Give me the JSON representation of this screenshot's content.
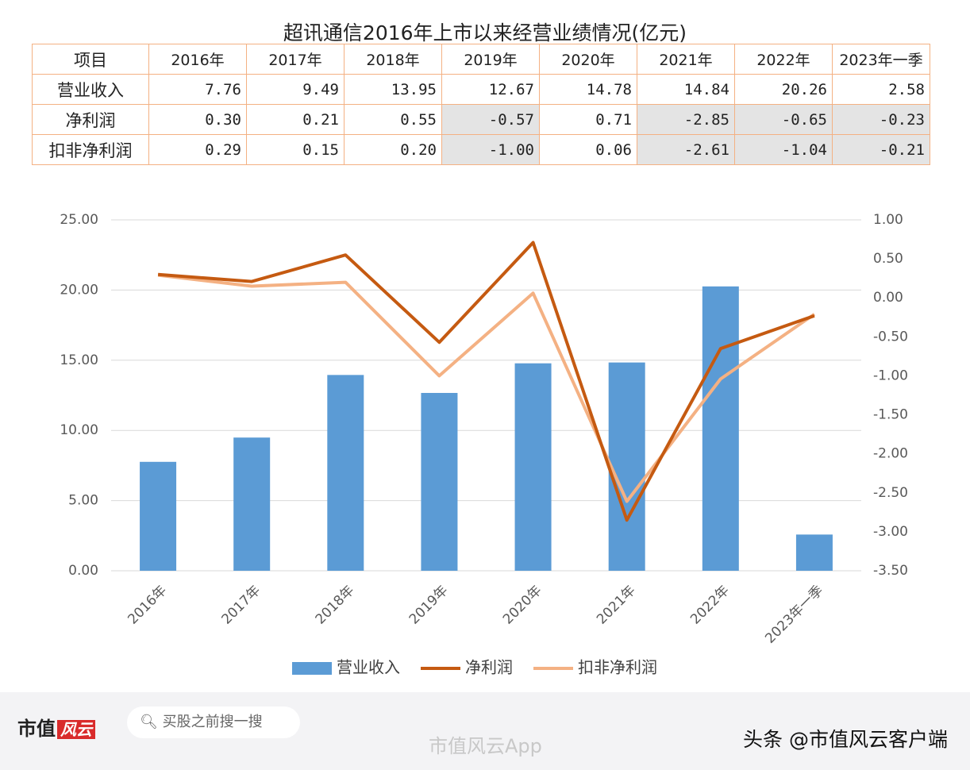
{
  "title": "超讯通信2016年上市以来经营业绩情况(亿元)",
  "table": {
    "header": [
      "项目",
      "2016年",
      "2017年",
      "2018年",
      "2019年",
      "2020年",
      "2021年",
      "2022年",
      "2023年一季"
    ],
    "rows": [
      [
        "营业收入",
        "7.76",
        "9.49",
        "13.95",
        "12.67",
        "14.78",
        "14.84",
        "20.26",
        "2.58"
      ],
      [
        "净利润",
        "0.30",
        "0.21",
        "0.55",
        "-0.57",
        "0.71",
        "-2.85",
        "-0.65",
        "-0.23"
      ],
      [
        "扣非净利润",
        "0.29",
        "0.15",
        "0.20",
        "-1.00",
        "0.06",
        "-2.61",
        "-1.04",
        "-0.21"
      ]
    ]
  },
  "chart_data": {
    "type": "bar-line",
    "categories": [
      "2016年",
      "2017年",
      "2018年",
      "2019年",
      "2020年",
      "2021年",
      "2022年",
      "2023年一季"
    ],
    "series": [
      {
        "name": "营业收入",
        "type": "bar",
        "color": "#5b9bd5",
        "values": [
          7.76,
          9.49,
          13.95,
          12.67,
          14.78,
          14.84,
          20.26,
          2.58
        ]
      },
      {
        "name": "净利润",
        "type": "line",
        "axis": "y2",
        "color": "#c55a11",
        "values": [
          0.3,
          0.21,
          0.55,
          -0.57,
          0.71,
          -2.85,
          -0.65,
          -0.23
        ]
      },
      {
        "name": "扣非净利润",
        "type": "line",
        "axis": "y2",
        "color": "#f4b183",
        "values": [
          0.29,
          0.15,
          0.2,
          -1.0,
          0.06,
          -2.61,
          -1.04,
          -0.21
        ]
      }
    ],
    "ylim": [
      0,
      25
    ],
    "yticks": [
      {
        "value": 0,
        "label": "0.00"
      },
      {
        "value": 5,
        "label": "5.00"
      },
      {
        "value": 10,
        "label": "10.00"
      },
      {
        "value": 15,
        "label": "15.00"
      },
      {
        "value": 20,
        "label": "20.00"
      },
      {
        "value": 25,
        "label": "25.00"
      }
    ],
    "y2lim": [
      -3.5,
      1
    ],
    "y2ticks": [
      {
        "value": -3.5,
        "label": "-3.50"
      },
      {
        "value": -3,
        "label": "-3.00"
      },
      {
        "value": -2.5,
        "label": "-2.50"
      },
      {
        "value": -2,
        "label": "-2.00"
      },
      {
        "value": -1.5,
        "label": "-1.50"
      },
      {
        "value": -1,
        "label": "-1.00"
      },
      {
        "value": -0.5,
        "label": "-0.50"
      },
      {
        "value": 0,
        "label": "0.00"
      },
      {
        "value": 0.5,
        "label": "0.50"
      },
      {
        "value": 1,
        "label": "1.00"
      }
    ],
    "grid": true,
    "legend": "bottom"
  },
  "footer": {
    "logo": "市值",
    "logo_mark": "风云",
    "search": "买股之前搜一搜",
    "watermark": "市值风云App",
    "source": "头条 @市值风云客户端"
  }
}
